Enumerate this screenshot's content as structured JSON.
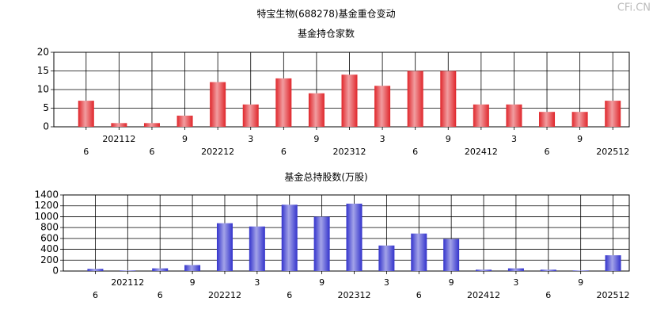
{
  "title": "特宝生物(688278)基金重仓变动",
  "watermark": "CFi.CN",
  "chart_data": [
    {
      "type": "bar",
      "title": "基金持仓家数",
      "categories": [
        "6",
        "202112",
        "6",
        "9",
        "202212",
        "3",
        "6",
        "9",
        "202312",
        "3",
        "6",
        "9",
        "202412",
        "3",
        "6",
        "9",
        "202512"
      ],
      "values": [
        7,
        1,
        1,
        3,
        12,
        6,
        13,
        9,
        14,
        11,
        15,
        15,
        6,
        6,
        4,
        4,
        7
      ],
      "color": "#e0262b",
      "ylim": [
        0,
        20
      ],
      "yticks": [
        0,
        5,
        10,
        15,
        20
      ],
      "grid": true
    },
    {
      "type": "bar",
      "title": "基金总持股数(万股)",
      "categories": [
        "6",
        "202112",
        "6",
        "9",
        "202212",
        "3",
        "6",
        "9",
        "202312",
        "3",
        "6",
        "9",
        "202412",
        "3",
        "6",
        "9",
        "202512"
      ],
      "values": [
        40,
        10,
        50,
        110,
        880,
        820,
        1220,
        1000,
        1240,
        470,
        690,
        590,
        25,
        50,
        25,
        10,
        290
      ],
      "color": "#3333cc",
      "ylim": [
        0,
        1400
      ],
      "yticks": [
        0,
        200,
        400,
        600,
        800,
        1000,
        1200,
        1400
      ],
      "grid": true
    }
  ]
}
